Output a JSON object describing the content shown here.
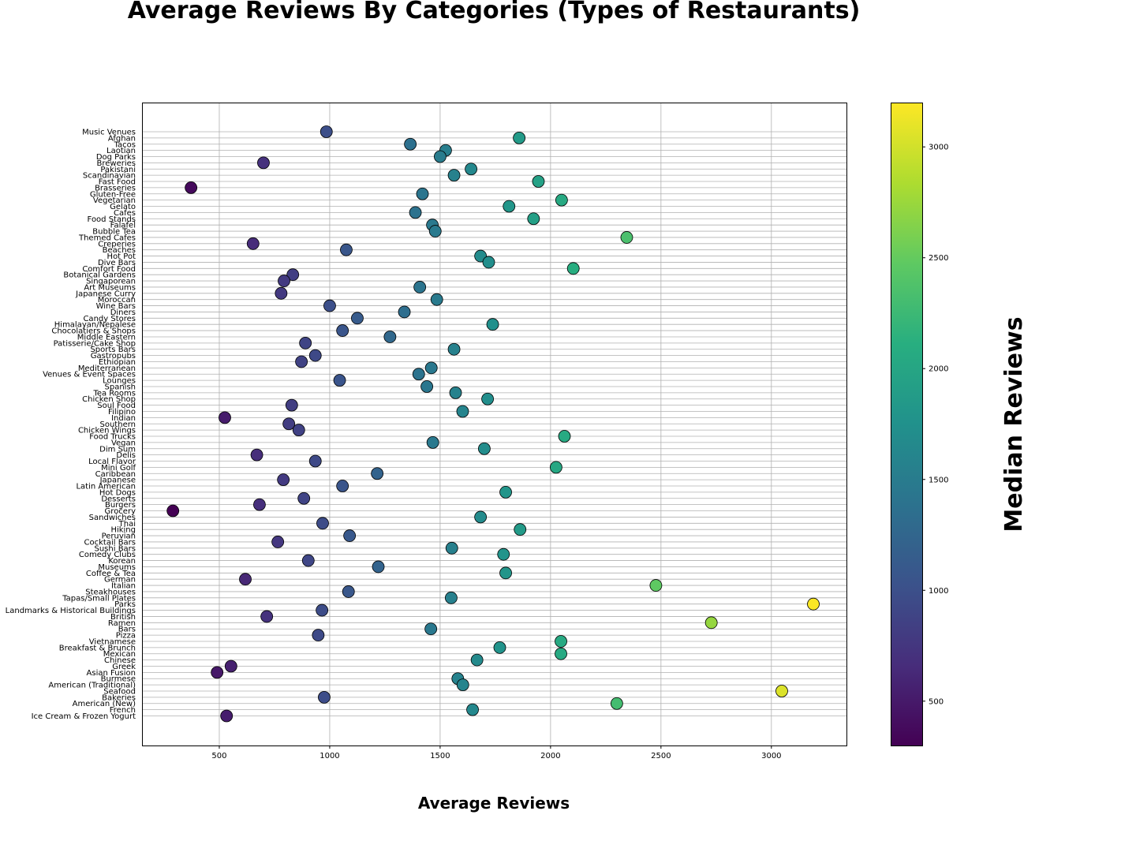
{
  "chart_data": {
    "type": "scatter",
    "title": "Average Reviews By Categories (Types of Restaurants)",
    "xlabel": "Average Reviews",
    "ylabel": "",
    "colorbar_label": "Median Reviews",
    "xlim": [
      150,
      3340
    ],
    "xticks": [
      500,
      1000,
      1500,
      2000,
      2500,
      3000
    ],
    "colorbar_range": [
      300,
      3200
    ],
    "colorbar_ticks": [
      500,
      1000,
      1500,
      2000,
      2500,
      3000
    ],
    "colormap": "viridis",
    "grid": true,
    "points": [
      {
        "category": "Music Venues",
        "x": 985
      },
      {
        "category": "Afghan",
        "x": 1858
      },
      {
        "category": "Tacos",
        "x": 1365
      },
      {
        "category": "Laotian",
        "x": 1525
      },
      {
        "category": "Dog Parks",
        "x": 1500
      },
      {
        "category": "Breweries",
        "x": 700
      },
      {
        "category": "Pakistani",
        "x": 1640
      },
      {
        "category": "Scandinavian",
        "x": 1563
      },
      {
        "category": "Fast Food",
        "x": 1945
      },
      {
        "category": "Brasseries",
        "x": 372
      },
      {
        "category": "Gluten-Free",
        "x": 1420
      },
      {
        "category": "Vegetarian",
        "x": 2050
      },
      {
        "category": "Gelato",
        "x": 1812
      },
      {
        "category": "Cafes",
        "x": 1388
      },
      {
        "category": "Food Stands",
        "x": 1923
      },
      {
        "category": "Falafel",
        "x": 1465
      },
      {
        "category": "Bubble Tea",
        "x": 1478
      },
      {
        "category": "Themed Cafes",
        "x": 2345
      },
      {
        "category": "Creperies",
        "x": 653
      },
      {
        "category": "Beaches",
        "x": 1075
      },
      {
        "category": "Hot Pot",
        "x": 1683
      },
      {
        "category": "Dive Bars",
        "x": 1720
      },
      {
        "category": "Comfort Food",
        "x": 2103
      },
      {
        "category": "Botanical Gardens",
        "x": 833
      },
      {
        "category": "Singaporean",
        "x": 793
      },
      {
        "category": "Art Museums",
        "x": 1408
      },
      {
        "category": "Japanese Curry",
        "x": 780
      },
      {
        "category": "Moroccan",
        "x": 1485
      },
      {
        "category": "Wine Bars",
        "x": 1000
      },
      {
        "category": "Diners",
        "x": 1338
      },
      {
        "category": "Candy Stores",
        "x": 1125
      },
      {
        "category": "Himalayan/Nepalese",
        "x": 1738
      },
      {
        "category": "Chocolatiers & Shops",
        "x": 1058
      },
      {
        "category": "Middle Eastern",
        "x": 1273
      },
      {
        "category": "Patisserie/Cake Shop",
        "x": 890
      },
      {
        "category": "Sports Bars",
        "x": 1563
      },
      {
        "category": "Gastropubs",
        "x": 935
      },
      {
        "category": "Ethiopian",
        "x": 872
      },
      {
        "category": "Mediterranean",
        "x": 1460
      },
      {
        "category": "Venues & Event Spaces",
        "x": 1403
      },
      {
        "category": "Lounges",
        "x": 1045
      },
      {
        "category": "Spanish",
        "x": 1440
      },
      {
        "category": "Tea Rooms",
        "x": 1570
      },
      {
        "category": "Chicken Shop",
        "x": 1715
      },
      {
        "category": "Soul Food",
        "x": 828
      },
      {
        "category": "Filipino",
        "x": 1602
      },
      {
        "category": "Indian",
        "x": 525
      },
      {
        "category": "Southern",
        "x": 815
      },
      {
        "category": "Chicken Wings",
        "x": 860
      },
      {
        "category": "Food Trucks",
        "x": 2063
      },
      {
        "category": "Vegan",
        "x": 1467
      },
      {
        "category": "Dim Sum",
        "x": 1700
      },
      {
        "category": "Delis",
        "x": 670
      },
      {
        "category": "Local Flavor",
        "x": 935
      },
      {
        "category": "Mini Golf",
        "x": 2025
      },
      {
        "category": "Caribbean",
        "x": 1215
      },
      {
        "category": "Japanese",
        "x": 790
      },
      {
        "category": "Latin American",
        "x": 1058
      },
      {
        "category": "Hot Dogs",
        "x": 1797
      },
      {
        "category": "Desserts",
        "x": 883
      },
      {
        "category": "Burgers",
        "x": 682
      },
      {
        "category": "Grocery",
        "x": 290
      },
      {
        "category": "Sandwiches",
        "x": 1683
      },
      {
        "category": "Thai",
        "x": 968
      },
      {
        "category": "Hiking",
        "x": 1862
      },
      {
        "category": "Peruvian",
        "x": 1090
      },
      {
        "category": "Cocktail Bars",
        "x": 765
      },
      {
        "category": "Sushi Bars",
        "x": 1553
      },
      {
        "category": "Comedy Clubs",
        "x": 1787
      },
      {
        "category": "Korean",
        "x": 903
      },
      {
        "category": "Museums",
        "x": 1220
      },
      {
        "category": "Coffee & Tea",
        "x": 1797
      },
      {
        "category": "German",
        "x": 618
      },
      {
        "category": "Italian",
        "x": 2477
      },
      {
        "category": "Steakhouses",
        "x": 1085
      },
      {
        "category": "Tapas/Small Plates",
        "x": 1550
      },
      {
        "category": "Parks",
        "x": 3190
      },
      {
        "category": "Landmarks & Historical Buildings",
        "x": 965
      },
      {
        "category": "British",
        "x": 715
      },
      {
        "category": "Ramen",
        "x": 2728
      },
      {
        "category": "Bars",
        "x": 1458
      },
      {
        "category": "Pizza",
        "x": 948
      },
      {
        "category": "Vietnamese",
        "x": 2047
      },
      {
        "category": "Breakfast & Brunch",
        "x": 1770
      },
      {
        "category": "Mexican",
        "x": 2047
      },
      {
        "category": "Chinese",
        "x": 1667
      },
      {
        "category": "Greek",
        "x": 553
      },
      {
        "category": "Asian Fusion",
        "x": 490
      },
      {
        "category": "Burmese",
        "x": 1580
      },
      {
        "category": "American (Traditional)",
        "x": 1603
      },
      {
        "category": "Seafood",
        "x": 3047
      },
      {
        "category": "Bakeries",
        "x": 975
      },
      {
        "category": "American (New)",
        "x": 2300
      },
      {
        "category": "French",
        "x": 1647
      },
      {
        "category": "Ice Cream & Frozen Yogurt",
        "x": 533
      }
    ]
  }
}
